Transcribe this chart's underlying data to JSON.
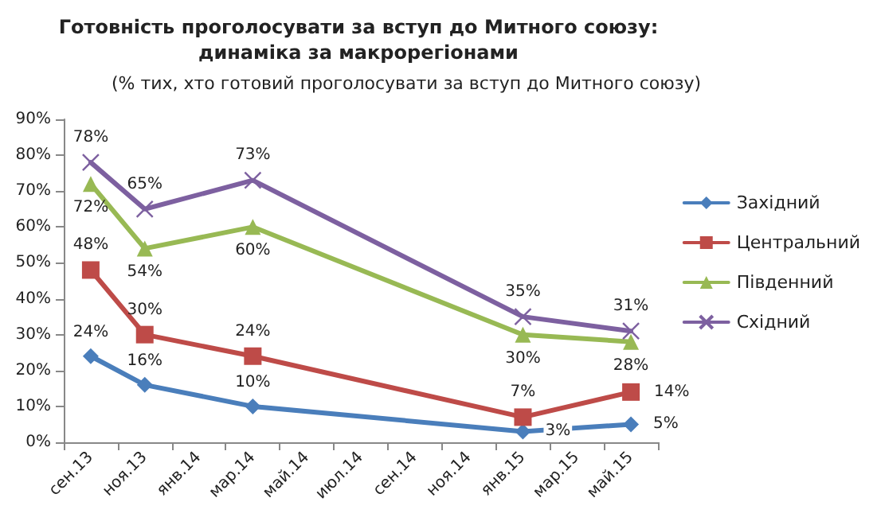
{
  "chart_data": {
    "type": "line",
    "title": "Готовність проголосувати за вступ до Митного союзу:\nдинаміка за макрорегіонами",
    "subtitle": "(% тих, хто готовий проголосувати за вступ до Митного союзу)",
    "categories": [
      "сен.13",
      "ноя.13",
      "янв.14",
      "мар.14",
      "май.14",
      "июл.14",
      "сен.14",
      "ноя.14",
      "янв.15",
      "мар.15",
      "май.15"
    ],
    "series": [
      {
        "name": "Західний",
        "color": "#4a7ebb",
        "marker": "diamond",
        "values": [
          24,
          16,
          null,
          10,
          null,
          null,
          null,
          null,
          3,
          null,
          5
        ],
        "value_labels": [
          "24%",
          "16%",
          null,
          "10%",
          null,
          null,
          null,
          null,
          "3%",
          null,
          "5%"
        ]
      },
      {
        "name": "Центральний",
        "color": "#be4b48",
        "marker": "square",
        "values": [
          48,
          30,
          null,
          24,
          null,
          null,
          null,
          null,
          7,
          null,
          14
        ],
        "value_labels": [
          "48%",
          "30%",
          null,
          "24%",
          null,
          null,
          null,
          null,
          "7%",
          null,
          "14%"
        ]
      },
      {
        "name": "Південний",
        "color": "#98b954",
        "marker": "triangle",
        "values": [
          72,
          54,
          null,
          60,
          null,
          null,
          null,
          null,
          30,
          null,
          28
        ],
        "value_labels": [
          "72%",
          "54%",
          null,
          "60%",
          null,
          null,
          null,
          null,
          "30%",
          null,
          "28%"
        ]
      },
      {
        "name": "Східний",
        "color": "#7d60a0",
        "marker": "cross",
        "values": [
          78,
          65,
          null,
          73,
          null,
          null,
          null,
          null,
          35,
          null,
          31
        ],
        "value_labels": [
          "78%",
          "65%",
          null,
          "73%",
          null,
          null,
          null,
          null,
          "35%",
          null,
          "31%"
        ]
      }
    ],
    "ylim": [
      0,
      90
    ],
    "yticks": [
      {
        "value": 0,
        "label": "0%"
      },
      {
        "value": 10,
        "label": "10%"
      },
      {
        "value": 20,
        "label": "20%"
      },
      {
        "value": 30,
        "label": "30%"
      },
      {
        "value": 40,
        "label": "40%"
      },
      {
        "value": 50,
        "label": "50%"
      },
      {
        "value": 60,
        "label": "60%"
      },
      {
        "value": 70,
        "label": "70%"
      },
      {
        "value": 80,
        "label": "80%"
      },
      {
        "value": 90,
        "label": "90%"
      }
    ],
    "grid": false,
    "legend": "right",
    "line_style": "solid"
  }
}
